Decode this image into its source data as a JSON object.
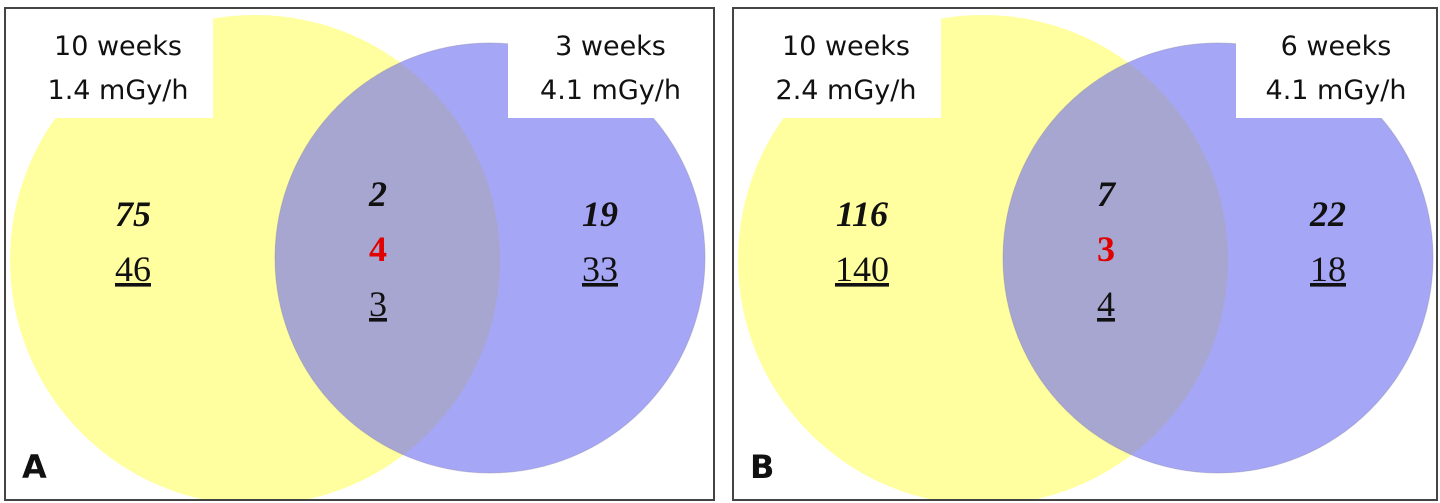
{
  "panels": [
    {
      "letter": "A",
      "left_label": [
        "10 weeks",
        "1.4 mGy/h"
      ],
      "right_label": [
        "3 weeks",
        "4.1 mGy/h"
      ],
      "left": {
        "italic": 75,
        "underlined": 46
      },
      "overlap": {
        "italic": 2,
        "red": 4,
        "underlined": 3
      },
      "right": {
        "italic": 19,
        "underlined": 33
      }
    },
    {
      "letter": "B",
      "left_label": [
        "10 weeks",
        "2.4 mGy/h"
      ],
      "right_label": [
        "6 weeks",
        "4.1 mGy/h"
      ],
      "left": {
        "italic": 116,
        "underlined": 140
      },
      "overlap": {
        "italic": 7,
        "red": 3,
        "underlined": 4
      },
      "right": {
        "italic": 22,
        "underlined": 18
      }
    }
  ]
}
